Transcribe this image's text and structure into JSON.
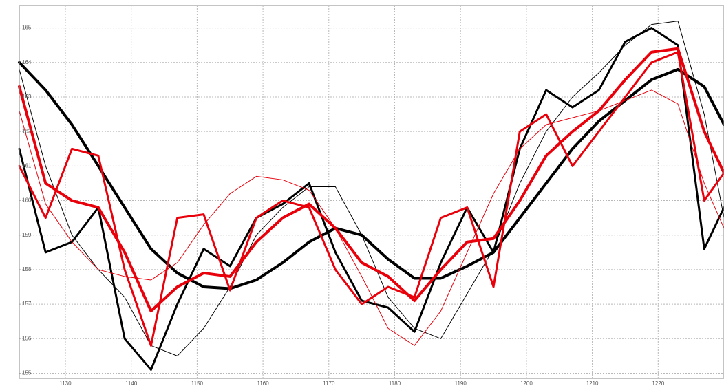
{
  "chart_data": {
    "type": "line",
    "x": [
      1123,
      1127,
      1131,
      1135,
      1139,
      1143,
      1147,
      1151,
      1155,
      1159,
      1163,
      1167,
      1171,
      1175,
      1179,
      1183,
      1187,
      1191,
      1195,
      1199,
      1203,
      1207,
      1211,
      1215,
      1219,
      1223,
      1227,
      1230
    ],
    "series": [
      {
        "color": "#000000",
        "width": 4,
        "values": [
          164.0,
          163.2,
          162.2,
          161.0,
          159.8,
          158.6,
          157.9,
          157.5,
          157.45,
          157.7,
          158.2,
          158.8,
          159.2,
          159.0,
          158.3,
          157.75,
          157.75,
          158.1,
          158.5,
          159.5,
          160.5,
          161.5,
          162.3,
          162.9,
          163.5,
          163.8,
          163.3,
          162.2
        ]
      },
      {
        "color": "#000000",
        "width": 3,
        "values": [
          161.5,
          158.5,
          158.8,
          159.8,
          156.0,
          155.1,
          157.0,
          158.6,
          158.1,
          159.5,
          159.9,
          160.5,
          158.5,
          157.1,
          156.9,
          156.2,
          158.2,
          159.8,
          158.5,
          161.5,
          163.2,
          162.7,
          163.2,
          164.6,
          165.0,
          164.5,
          158.6,
          159.8
        ]
      },
      {
        "color": "#000000",
        "width": 1,
        "values": [
          163.8,
          161.0,
          159.0,
          158.0,
          157.2,
          155.8,
          155.5,
          156.3,
          157.5,
          159.0,
          159.8,
          160.4,
          160.4,
          159.0,
          157.2,
          156.3,
          156.0,
          157.3,
          158.6,
          160.5,
          162.0,
          163.0,
          163.7,
          164.5,
          165.1,
          165.2,
          162.5,
          159.5
        ]
      },
      {
        "color": "#e8000b",
        "width": 4,
        "values": [
          163.3,
          160.5,
          160.0,
          159.8,
          158.5,
          156.8,
          157.5,
          157.9,
          157.8,
          158.8,
          159.5,
          159.9,
          159.2,
          158.2,
          157.8,
          157.1,
          158.0,
          158.8,
          158.9,
          160.0,
          161.3,
          162.0,
          162.6,
          163.5,
          164.3,
          164.4,
          162.0,
          160.8
        ]
      },
      {
        "color": "#e8000b",
        "width": 3,
        "values": [
          161.0,
          159.5,
          161.5,
          161.3,
          158.0,
          155.8,
          159.5,
          159.6,
          157.4,
          159.5,
          160.0,
          159.8,
          158.0,
          157.0,
          157.5,
          157.2,
          159.5,
          159.8,
          157.5,
          162.0,
          162.5,
          161.0,
          162.0,
          163.0,
          164.0,
          164.3,
          160.0,
          160.8
        ]
      },
      {
        "color": "#e8000b",
        "width": 1,
        "values": [
          162.6,
          159.9,
          158.8,
          158.0,
          157.8,
          157.7,
          158.2,
          159.3,
          160.2,
          160.7,
          160.6,
          160.3,
          159.2,
          157.8,
          156.3,
          155.8,
          156.8,
          158.5,
          160.2,
          161.5,
          162.2,
          162.4,
          162.6,
          162.9,
          163.2,
          162.8,
          160.5,
          159.2
        ]
      }
    ],
    "xlim": [
      1123,
      1230
    ],
    "ylim": [
      154.85,
      165.65
    ],
    "xticks": [
      1130,
      1140,
      1150,
      1160,
      1170,
      1180,
      1190,
      1200,
      1210,
      1220
    ],
    "yticks": [
      155,
      156,
      157,
      158,
      159,
      160,
      161,
      162,
      163,
      164,
      165
    ],
    "grid": true
  }
}
